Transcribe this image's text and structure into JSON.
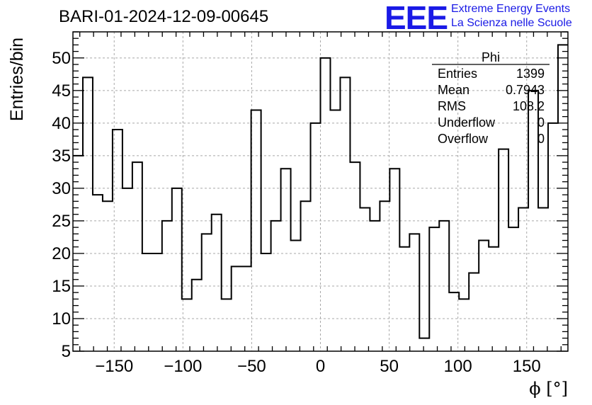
{
  "title": "BARI-01-2024-12-09-00645",
  "logo": {
    "mark": "EEE",
    "line1": "Extreme Energy Events",
    "line2": "La Scienza nelle Scuole",
    "color": "#1a1ae6"
  },
  "stats_box": {
    "name": "Phi",
    "rows": [
      {
        "label": "Entries",
        "value": "1399"
      },
      {
        "label": "Mean",
        "value": "0.7943"
      },
      {
        "label": "RMS",
        "value": "108.2"
      },
      {
        "label": "Underflow",
        "value": "0"
      },
      {
        "label": "Overflow",
        "value": "0"
      }
    ]
  },
  "chart_data": {
    "type": "histogram",
    "title": "BARI-01-2024-12-09-00645",
    "xlabel": "ϕ [°]",
    "ylabel": "Entries/bin",
    "xlim": [
      -180,
      180
    ],
    "ylim": [
      5,
      54
    ],
    "bin_width": 7.2,
    "bin_edges_start": -180,
    "values": [
      35,
      47,
      29,
      28,
      39,
      30,
      34,
      20,
      20,
      25,
      30,
      13,
      16,
      23,
      26,
      13,
      18,
      18,
      42,
      20,
      25,
      33,
      22,
      28,
      40,
      50,
      42,
      47,
      34,
      27,
      25,
      28,
      33,
      21,
      23,
      7,
      24,
      25,
      14,
      13,
      17,
      22,
      21,
      36,
      24,
      27,
      45,
      27,
      40,
      52
    ],
    "x_ticks": [
      -150,
      -100,
      -50,
      0,
      50,
      100,
      150
    ],
    "x_tick_labels": [
      "−150",
      "−100",
      "−50",
      "0",
      "50",
      "100",
      "150"
    ],
    "y_ticks": [
      5,
      10,
      15,
      20,
      25,
      30,
      35,
      40,
      45,
      50
    ],
    "y_tick_labels": [
      "5",
      "10",
      "15",
      "20",
      "25",
      "30",
      "35",
      "40",
      "45",
      "50"
    ],
    "grid": true
  }
}
